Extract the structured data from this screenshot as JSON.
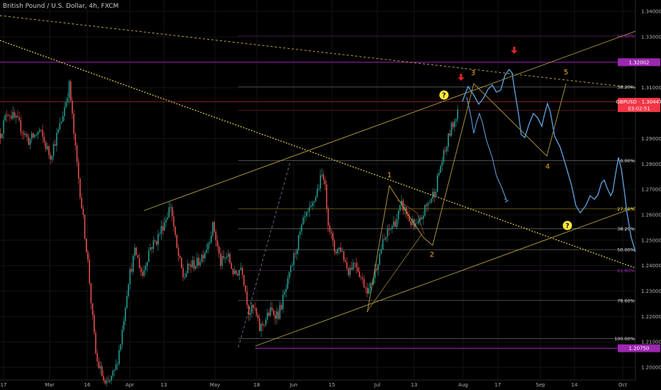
{
  "header": {
    "symbol_title": "British Pound / U.S. Dollar, 4h, FXCM"
  },
  "chart_data": {
    "type": "candlestick",
    "xlabel": "",
    "ylabel": "",
    "ylim": [
      1.195,
      1.3445
    ],
    "grid": true,
    "x_ticks": [
      "17",
      "Mar",
      "16",
      "Apr",
      "13",
      "May",
      "18",
      "Jun",
      "15",
      "Jul",
      "13",
      "Aug",
      "17",
      "Sep",
      "14",
      "Oct"
    ],
    "y_ticks": [
      "1.34000",
      "1.33000",
      "1.31000",
      "1.29000",
      "1.28000",
      "1.27000",
      "1.26000",
      "1.25000",
      "1.24000",
      "1.23000",
      "1.22000",
      "1.21000",
      "1.20000"
    ],
    "current_price": {
      "label": "GBPUSD",
      "value": "1.30447",
      "countdown": "03:02:51",
      "color": "#f23645"
    },
    "price_tags": [
      {
        "value": "1.32002",
        "color": "#9c27b0"
      },
      {
        "value": "1.20750",
        "color": "#9c27b0"
      }
    ],
    "fib_levels_upper": [
      {
        "label": "61.80%",
        "price": 1.3304,
        "color": "#9c27b0"
      },
      {
        "label": "38.20%",
        "price": 1.3104,
        "color": "#e0e0e0"
      },
      {
        "label": "27.00%",
        "price": 1.3011,
        "color": "#f23645"
      }
    ],
    "fib_levels_lower": [
      {
        "label": "0.00%",
        "price": 1.2813,
        "color": "#e0e0e0"
      },
      {
        "label": "27.00%",
        "price": 1.2624,
        "color": "#ffeb3b"
      },
      {
        "label": "38.20%",
        "price": 1.2546,
        "color": "#e0e0e0"
      },
      {
        "label": "50.00%",
        "price": 1.2463,
        "color": "#e0e0e0"
      },
      {
        "label": "61.80%",
        "price": 1.2381,
        "color": "#9c27b0"
      },
      {
        "label": "78.60%",
        "price": 1.2263,
        "color": "#e0e0e0"
      },
      {
        "label": "100.00%",
        "price": 1.2113,
        "color": "#e0e0e0"
      }
    ],
    "horizontal_levels": [
      {
        "price": 1.32002,
        "color": "#9c27b0"
      },
      {
        "price": 1.30447,
        "color": "#f23645"
      },
      {
        "price": 1.2075,
        "color": "#9c27b0"
      }
    ],
    "wave_labels": [
      "1",
      "2",
      "3",
      "4",
      "5"
    ],
    "question_markers": [
      "?",
      "?"
    ],
    "colors": {
      "up": "#26a69a",
      "down": "#ef5350",
      "projection": "#5b9bd5",
      "channel": "#b8a040",
      "wave_label": "#f5a623",
      "trend_dotted": "#d4c34a",
      "arrow": "#e02424"
    }
  }
}
